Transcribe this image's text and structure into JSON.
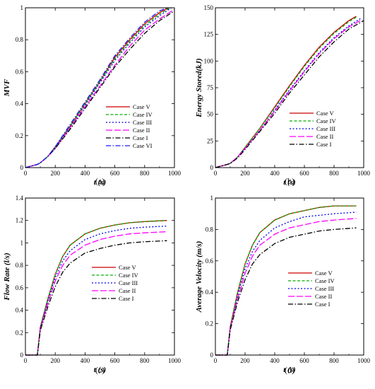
{
  "colors": {
    "case_v": "#cc0000",
    "case_iv": "#00b000",
    "case_iii": "#0000ee",
    "case_ii": "#ff00ff",
    "case_i": "#000000",
    "case_vi": "#1a1aff"
  },
  "chart_data": [
    {
      "type": "line",
      "panel_label": "(a)",
      "xlabel": "t (s)",
      "ylabel": "MVF",
      "xlim": [
        0,
        1000
      ],
      "ylim": [
        0,
        1
      ],
      "xticks": [
        0,
        200,
        400,
        600,
        800,
        1000
      ],
      "yticks": [
        0,
        0.2,
        0.4,
        0.6,
        0.8,
        1
      ],
      "xtick_labels": [
        "0",
        "200",
        "400",
        "600",
        "800",
        "1000"
      ],
      "ytick_labels": [
        "0",
        "0.2",
        "0.4",
        "0.6",
        "0.8",
        "1"
      ],
      "legend_position": "lower-right",
      "series": [
        {
          "name": "Case V",
          "style": "solid",
          "color_key": "case_v",
          "x": [
            0,
            80,
            100,
            150,
            200,
            300,
            400,
            500,
            600,
            700,
            800,
            900,
            960
          ],
          "y": [
            0,
            0.02,
            0.03,
            0.07,
            0.13,
            0.26,
            0.4,
            0.54,
            0.69,
            0.8,
            0.9,
            0.97,
            1.0
          ]
        },
        {
          "name": "Case IV",
          "style": "dashed",
          "color_key": "case_iv",
          "x": [
            0,
            80,
            100,
            150,
            200,
            300,
            400,
            500,
            600,
            700,
            800,
            900,
            970
          ],
          "y": [
            0,
            0.02,
            0.03,
            0.07,
            0.13,
            0.26,
            0.4,
            0.54,
            0.68,
            0.79,
            0.89,
            0.96,
            1.0
          ]
        },
        {
          "name": "Case III",
          "style": "dotted",
          "color_key": "case_iii",
          "x": [
            0,
            80,
            100,
            150,
            200,
            300,
            400,
            500,
            600,
            700,
            800,
            900,
            980
          ],
          "y": [
            0,
            0.02,
            0.03,
            0.07,
            0.13,
            0.25,
            0.39,
            0.53,
            0.67,
            0.78,
            0.88,
            0.95,
            1.0
          ]
        },
        {
          "name": "Case II",
          "style": "longdash",
          "color_key": "case_ii",
          "x": [
            0,
            80,
            100,
            150,
            200,
            300,
            400,
            500,
            600,
            700,
            800,
            900,
            1000
          ],
          "y": [
            0,
            0.02,
            0.03,
            0.07,
            0.12,
            0.25,
            0.38,
            0.51,
            0.64,
            0.76,
            0.86,
            0.93,
            0.99
          ]
        },
        {
          "name": "Case I",
          "style": "dashdot",
          "color_key": "case_i",
          "x": [
            0,
            80,
            100,
            150,
            200,
            300,
            400,
            500,
            600,
            700,
            800,
            900,
            1000
          ],
          "y": [
            0,
            0.02,
            0.03,
            0.07,
            0.12,
            0.24,
            0.37,
            0.5,
            0.63,
            0.74,
            0.84,
            0.92,
            0.98
          ]
        },
        {
          "name": "Case VI",
          "style": "dashdot",
          "color_key": "case_vi",
          "x": [
            0,
            80,
            100,
            150,
            200,
            300,
            400,
            500,
            600,
            700,
            800,
            900,
            950
          ],
          "y": [
            0,
            0.02,
            0.03,
            0.07,
            0.13,
            0.27,
            0.41,
            0.55,
            0.7,
            0.81,
            0.91,
            0.98,
            1.0
          ]
        }
      ]
    },
    {
      "type": "line",
      "panel_label": "(b)",
      "xlabel": "t (s)",
      "ylabel": "Energy Stored(kJ)",
      "xlim": [
        0,
        1000
      ],
      "ylim": [
        0,
        150
      ],
      "xticks": [
        0,
        200,
        400,
        600,
        800,
        1000
      ],
      "yticks": [
        0,
        25,
        50,
        75,
        100,
        125,
        150
      ],
      "xtick_labels": [
        "0",
        "200",
        "400",
        "600",
        "800",
        "1000"
      ],
      "ytick_labels": [
        "0",
        "25",
        "50",
        "75",
        "100",
        "125",
        "150"
      ],
      "legend_position": "lower-right",
      "series": [
        {
          "name": "Case V",
          "style": "solid",
          "color_key": "case_v",
          "x": [
            0,
            80,
            100,
            150,
            200,
            300,
            400,
            500,
            600,
            700,
            800,
            900,
            950
          ],
          "y": [
            0,
            3,
            4,
            10,
            19,
            37,
            57,
            77,
            96,
            113,
            127,
            138,
            142
          ]
        },
        {
          "name": "Case IV",
          "style": "dashed",
          "color_key": "case_iv",
          "x": [
            0,
            80,
            100,
            150,
            200,
            300,
            400,
            500,
            600,
            700,
            800,
            900,
            960
          ],
          "y": [
            0,
            3,
            4,
            10,
            19,
            37,
            56,
            76,
            95,
            112,
            126,
            137,
            142
          ]
        },
        {
          "name": "Case III",
          "style": "dotted",
          "color_key": "case_iii",
          "x": [
            0,
            80,
            100,
            150,
            200,
            300,
            400,
            500,
            600,
            700,
            800,
            900,
            980
          ],
          "y": [
            0,
            3,
            4,
            10,
            18,
            35,
            54,
            73,
            91,
            108,
            122,
            133,
            140
          ]
        },
        {
          "name": "Case II",
          "style": "longdash",
          "color_key": "case_ii",
          "x": [
            0,
            80,
            100,
            150,
            200,
            300,
            400,
            500,
            600,
            700,
            800,
            900,
            990
          ],
          "y": [
            0,
            3,
            4,
            10,
            18,
            35,
            53,
            72,
            90,
            107,
            121,
            132,
            139
          ]
        },
        {
          "name": "Case I",
          "style": "dashdot",
          "color_key": "case_i",
          "x": [
            0,
            80,
            100,
            150,
            200,
            300,
            400,
            500,
            600,
            700,
            800,
            900,
            1000
          ],
          "y": [
            0,
            3,
            4,
            9,
            17,
            34,
            51,
            70,
            87,
            104,
            118,
            130,
            138
          ]
        }
      ]
    },
    {
      "type": "line",
      "panel_label": "(c)",
      "xlabel": "t (s)",
      "ylabel": "Flow Rate (l/s)",
      "xlim": [
        0,
        1000
      ],
      "ylim": [
        0,
        1.4
      ],
      "xticks": [
        0,
        200,
        400,
        600,
        800,
        1000
      ],
      "yticks": [
        0,
        0.2,
        0.4,
        0.6,
        0.8,
        1,
        1.2,
        1.4
      ],
      "xtick_labels": [
        "0",
        "200",
        "400",
        "600",
        "800",
        "1000"
      ],
      "ytick_labels": [
        "0",
        "0.2",
        "0.4",
        "0.6",
        "0.8",
        "1",
        "1.2",
        "1.4"
      ],
      "legend_position": "lower-right",
      "series": [
        {
          "name": "Case V",
          "style": "solid",
          "color_key": "case_v",
          "x": [
            0,
            80,
            100,
            150,
            200,
            250,
            300,
            400,
            500,
            600,
            700,
            800,
            950
          ],
          "y": [
            0,
            0,
            0.25,
            0.5,
            0.72,
            0.88,
            0.98,
            1.08,
            1.13,
            1.16,
            1.18,
            1.19,
            1.2
          ]
        },
        {
          "name": "Case IV",
          "style": "dashed",
          "color_key": "case_iv",
          "x": [
            0,
            80,
            100,
            150,
            200,
            250,
            300,
            400,
            500,
            600,
            700,
            800,
            950
          ],
          "y": [
            0,
            0,
            0.25,
            0.5,
            0.72,
            0.88,
            0.98,
            1.08,
            1.13,
            1.16,
            1.18,
            1.19,
            1.2
          ]
        },
        {
          "name": "Case III",
          "style": "dotted",
          "color_key": "case_iii",
          "x": [
            0,
            80,
            100,
            150,
            200,
            250,
            300,
            400,
            500,
            600,
            700,
            800,
            950
          ],
          "y": [
            0,
            0,
            0.24,
            0.48,
            0.69,
            0.84,
            0.93,
            1.03,
            1.08,
            1.11,
            1.13,
            1.14,
            1.15
          ]
        },
        {
          "name": "Case II",
          "style": "longdash",
          "color_key": "case_ii",
          "x": [
            0,
            80,
            100,
            150,
            200,
            250,
            300,
            400,
            500,
            600,
            700,
            800,
            950
          ],
          "y": [
            0,
            0,
            0.23,
            0.46,
            0.66,
            0.8,
            0.89,
            0.98,
            1.03,
            1.06,
            1.08,
            1.09,
            1.1
          ]
        },
        {
          "name": "Case I",
          "style": "dashdot",
          "color_key": "case_i",
          "x": [
            0,
            80,
            100,
            150,
            200,
            250,
            300,
            400,
            500,
            600,
            700,
            800,
            950
          ],
          "y": [
            0,
            0,
            0.22,
            0.43,
            0.61,
            0.74,
            0.82,
            0.91,
            0.95,
            0.98,
            1.0,
            1.01,
            1.02
          ]
        }
      ]
    },
    {
      "type": "line",
      "panel_label": "(d)",
      "xlabel": "t (s)",
      "ylabel": "Average Velocity (m/s)",
      "xlim": [
        0,
        1000
      ],
      "ylim": [
        0,
        1
      ],
      "xticks": [
        0,
        200,
        400,
        600,
        800,
        1000
      ],
      "yticks": [
        0,
        0.2,
        0.4,
        0.6,
        0.8,
        1
      ],
      "xtick_labels": [
        "0",
        "200",
        "400",
        "600",
        "800",
        "1000"
      ],
      "ytick_labels": [
        "0",
        "0.2",
        "0.4",
        "0.6",
        "0.8",
        "1"
      ],
      "legend_position": "lower-right",
      "series": [
        {
          "name": "Case V",
          "style": "solid",
          "color_key": "case_v",
          "x": [
            0,
            80,
            100,
            150,
            200,
            250,
            300,
            400,
            500,
            600,
            700,
            800,
            950
          ],
          "y": [
            0,
            0,
            0.18,
            0.4,
            0.58,
            0.7,
            0.78,
            0.86,
            0.9,
            0.92,
            0.94,
            0.95,
            0.95
          ]
        },
        {
          "name": "Case IV",
          "style": "dashed",
          "color_key": "case_iv",
          "x": [
            0,
            80,
            100,
            150,
            200,
            250,
            300,
            400,
            500,
            600,
            700,
            800,
            950
          ],
          "y": [
            0,
            0,
            0.18,
            0.4,
            0.58,
            0.7,
            0.78,
            0.86,
            0.9,
            0.92,
            0.94,
            0.95,
            0.95
          ]
        },
        {
          "name": "Case III",
          "style": "dotted",
          "color_key": "case_iii",
          "x": [
            0,
            80,
            100,
            150,
            200,
            250,
            300,
            400,
            500,
            600,
            700,
            800,
            950
          ],
          "y": [
            0,
            0,
            0.17,
            0.38,
            0.55,
            0.66,
            0.73,
            0.81,
            0.85,
            0.88,
            0.89,
            0.9,
            0.91
          ]
        },
        {
          "name": "Case II",
          "style": "longdash",
          "color_key": "case_ii",
          "x": [
            0,
            80,
            100,
            150,
            200,
            250,
            300,
            400,
            500,
            600,
            700,
            800,
            950
          ],
          "y": [
            0,
            0,
            0.17,
            0.36,
            0.52,
            0.63,
            0.7,
            0.77,
            0.81,
            0.83,
            0.85,
            0.86,
            0.87
          ]
        },
        {
          "name": "Case I",
          "style": "dashdot",
          "color_key": "case_i",
          "x": [
            0,
            80,
            100,
            150,
            200,
            250,
            300,
            400,
            500,
            600,
            700,
            800,
            950
          ],
          "y": [
            0,
            0,
            0.16,
            0.34,
            0.48,
            0.58,
            0.64,
            0.71,
            0.75,
            0.77,
            0.79,
            0.8,
            0.81
          ]
        }
      ]
    }
  ]
}
